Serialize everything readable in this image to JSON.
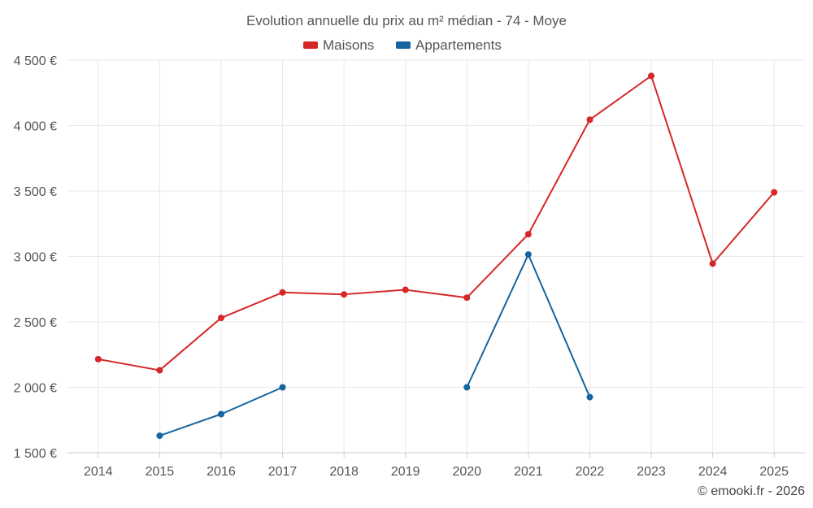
{
  "chart_data": {
    "type": "line",
    "title": "Evolution annuelle du prix au m² médian - 74 - Moye",
    "categories": [
      "2014",
      "2015",
      "2016",
      "2017",
      "2018",
      "2019",
      "2020",
      "2021",
      "2022",
      "2023",
      "2024",
      "2025"
    ],
    "series": [
      {
        "name": "Maisons",
        "color": "#d62728",
        "values": [
          2215,
          2130,
          2530,
          2725,
          2710,
          2745,
          2685,
          3170,
          4045,
          4380,
          2945,
          3490
        ]
      },
      {
        "name": "Appartements",
        "color": "#1565a0",
        "values": [
          null,
          1630,
          1795,
          2000,
          null,
          null,
          2000,
          3015,
          1925,
          null,
          null,
          null
        ]
      }
    ],
    "ylim": [
      1500,
      4500
    ],
    "yticks": [
      1500,
      2000,
      2500,
      3000,
      3500,
      4000,
      4500
    ],
    "ytick_labels": [
      "1 500 €",
      "2 000 €",
      "2 500 €",
      "3 000 €",
      "3 500 €",
      "4 000 €",
      "4 500 €"
    ],
    "xlabel": "",
    "ylabel": "",
    "grid": true,
    "legend_position": "top-center"
  },
  "credit": "© emooki.fr - 2026"
}
